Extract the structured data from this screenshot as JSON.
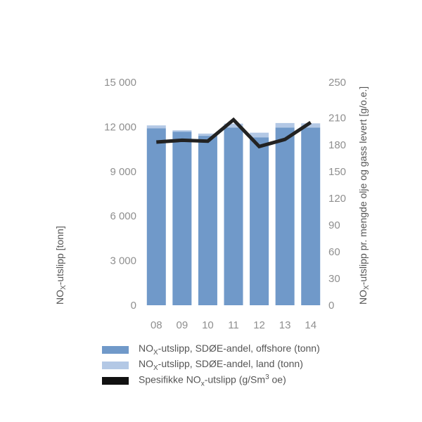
{
  "chart_data": {
    "type": "bar",
    "categories": [
      "08",
      "09",
      "10",
      "11",
      "12",
      "13",
      "14"
    ],
    "series": [
      {
        "name": "NOx-utslipp, SDØE-andel, offshore (tonn)",
        "values": [
          11900,
          11680,
          11400,
          11960,
          11300,
          11960,
          11960
        ],
        "axis": "left",
        "kind": "bar",
        "color": "#7099c9"
      },
      {
        "name": "NOx-utslipp, SDØE-andel, land (tonn)",
        "values": [
          200,
          90,
          150,
          260,
          310,
          300,
          280
        ],
        "axis": "left",
        "kind": "bar-stacked",
        "color": "#b3c8e5"
      },
      {
        "name": "Spesifikke NOx-utslipp (g/Sm³ oe)",
        "values": [
          183,
          185,
          184,
          208,
          178,
          186,
          205
        ],
        "axis": "right",
        "kind": "line",
        "color": "#222222"
      }
    ],
    "y_left": {
      "label_main": "NO",
      "label_sub": "X",
      "label_rest": "-utslipp [tonn]",
      "range": [
        0,
        15000
      ],
      "ticks": [
        0,
        3000,
        6000,
        9000,
        12000,
        15000
      ],
      "tick_labels": [
        "0",
        "3 000",
        "6 000",
        "9 000",
        "12 000",
        "15 000"
      ]
    },
    "y_right": {
      "label_main": "NO",
      "label_sub": "X",
      "label_rest": "-utslipp pr. mengde olje og gass levert [g/o.e.]",
      "range": [
        0,
        250
      ],
      "ticks": [
        0,
        30,
        60,
        90,
        120,
        150,
        180,
        210,
        250
      ],
      "tick_labels": [
        "0",
        "30",
        "60",
        "90",
        "120",
        "150",
        "180",
        "210",
        "250"
      ]
    },
    "legend": {
      "position": "bottom",
      "items": [
        {
          "pre": "NO",
          "sub": "X",
          "post": "-utslipp, SDØE-andel, offshore (tonn)",
          "color": "#7099c9"
        },
        {
          "pre": "NO",
          "sub": "X",
          "post": "-utslipp, SDØE-andel, land (tonn)",
          "color": "#b3c8e5"
        },
        {
          "pre": "Spesifikke NO",
          "sub": "x",
          "post": "-utslipp (g/Sm",
          "sup": "3",
          "post2": " oe)",
          "color": "#111111"
        }
      ]
    },
    "grid": false
  }
}
